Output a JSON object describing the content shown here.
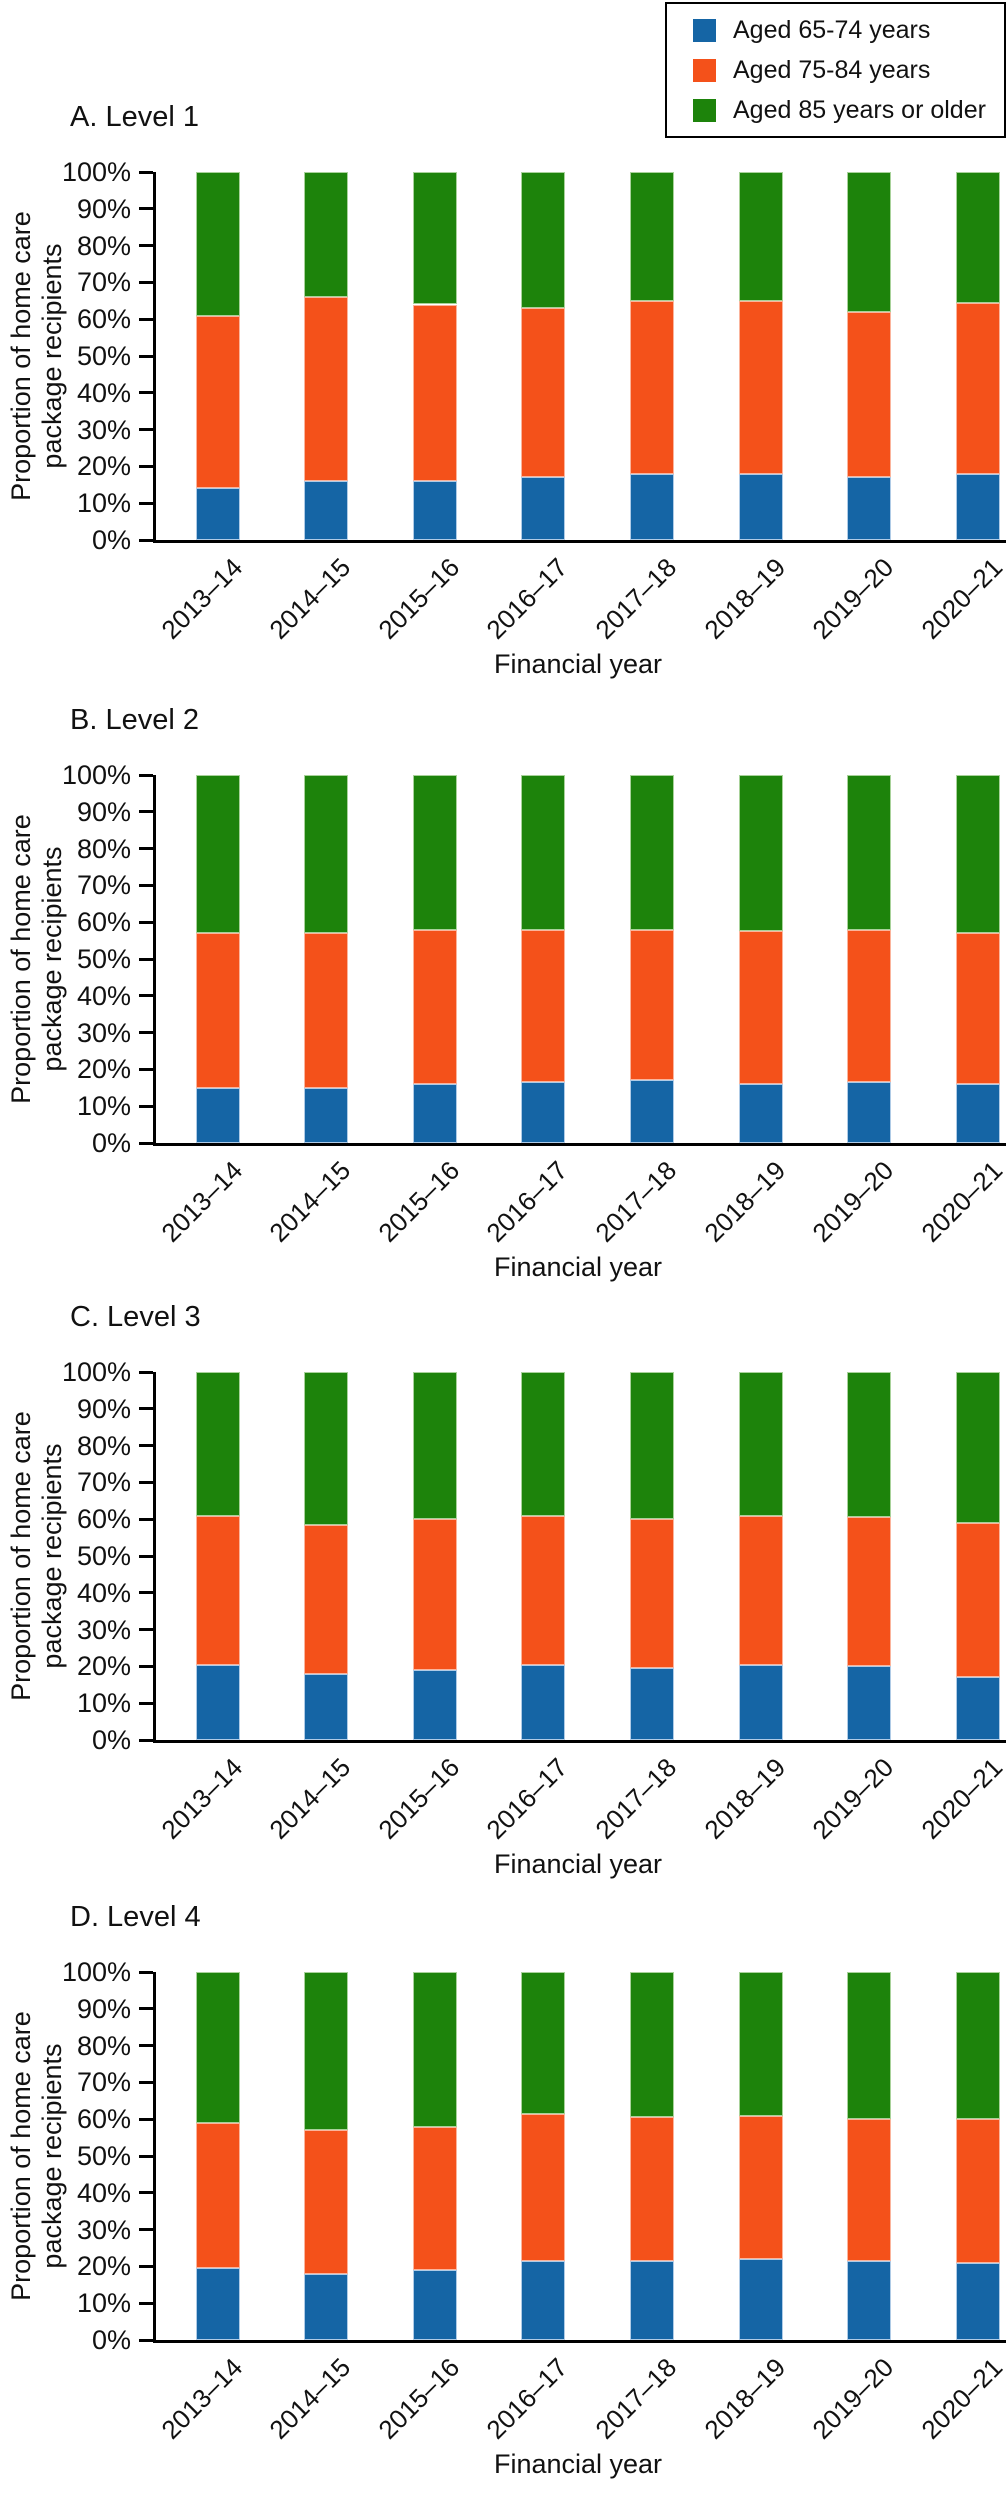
{
  "legend": {
    "items": [
      {
        "label": "Aged 65-74 years",
        "color": "#1565A5",
        "edge": "#AFCBE6"
      },
      {
        "label": "Aged 75-84 years",
        "color": "#F4511A",
        "edge": "#FBB49C"
      },
      {
        "label": "Aged 85 years or older",
        "color": "#1D830B",
        "edge": "#A8D29A"
      }
    ]
  },
  "axes": {
    "x_label": "Financial year",
    "y_label_line1": "Proportion of home care",
    "y_label_line2": "package recipients",
    "y_ticks": [
      "0%",
      "10%",
      "20%",
      "30%",
      "40%",
      "50%",
      "60%",
      "70%",
      "80%",
      "90%",
      "100%"
    ]
  },
  "chart_data": [
    {
      "type": "bar",
      "stacked": true,
      "title": "A. Level 1",
      "categories": [
        "2013–14",
        "2014–15",
        "2015–16",
        "2016–17",
        "2017–18",
        "2018–19",
        "2019–20",
        "2020–21"
      ],
      "series": [
        {
          "name": "Aged 65-74 years",
          "values": [
            14,
            16,
            16,
            17,
            18,
            18,
            17,
            18
          ]
        },
        {
          "name": "Aged 75-84 years",
          "values": [
            47,
            50,
            48,
            46,
            47,
            47,
            45,
            46.5
          ]
        },
        {
          "name": "Aged 85 years or older",
          "values": [
            39,
            34,
            36,
            37,
            35,
            35,
            38,
            35.5
          ]
        }
      ],
      "xlabel": "Financial year",
      "ylabel": "Proportion of home care package recipients",
      "ylim": [
        0,
        100
      ],
      "y_tick_step": 10,
      "y_tick_format": "percent",
      "grid": false,
      "legend_position": "top-right-shared"
    },
    {
      "type": "bar",
      "stacked": true,
      "title": "B. Level 2",
      "categories": [
        "2013–14",
        "2014–15",
        "2015–16",
        "2016–17",
        "2017–18",
        "2018–19",
        "2019–20",
        "2020–21"
      ],
      "series": [
        {
          "name": "Aged 65-74 years",
          "values": [
            15,
            15,
            16,
            16.5,
            17,
            16,
            16.5,
            16
          ]
        },
        {
          "name": "Aged 75-84 years",
          "values": [
            42,
            42,
            42,
            41.5,
            41,
            41.5,
            41.5,
            41
          ]
        },
        {
          "name": "Aged 85 years or older",
          "values": [
            43,
            43,
            42,
            42,
            42,
            42.5,
            42,
            43
          ]
        }
      ],
      "xlabel": "Financial year",
      "ylabel": "Proportion of home care package recipients",
      "ylim": [
        0,
        100
      ],
      "y_tick_step": 10,
      "y_tick_format": "percent",
      "grid": false,
      "legend_position": "top-right-shared"
    },
    {
      "type": "bar",
      "stacked": true,
      "title": "C. Level 3",
      "categories": [
        "2013–14",
        "2014–15",
        "2015–16",
        "2016–17",
        "2017–18",
        "2018–19",
        "2019–20",
        "2020–21"
      ],
      "series": [
        {
          "name": "Aged 65-74 years",
          "values": [
            20.5,
            18,
            19,
            20.5,
            19.5,
            20.5,
            20,
            17
          ]
        },
        {
          "name": "Aged 75-84 years",
          "values": [
            40.5,
            40.5,
            41,
            40.5,
            40.5,
            40.5,
            40.5,
            42
          ]
        },
        {
          "name": "Aged 85 years or older",
          "values": [
            39,
            41.5,
            40,
            39,
            40,
            39,
            39.5,
            41
          ]
        }
      ],
      "xlabel": "Financial year",
      "ylabel": "Proportion of home care package recipients",
      "ylim": [
        0,
        100
      ],
      "y_tick_step": 10,
      "y_tick_format": "percent",
      "grid": false,
      "legend_position": "top-right-shared"
    },
    {
      "type": "bar",
      "stacked": true,
      "title": "D. Level 4",
      "categories": [
        "2013–14",
        "2014–15",
        "2015–16",
        "2016–17",
        "2017–18",
        "2018–19",
        "2019–20",
        "2020–21"
      ],
      "series": [
        {
          "name": "Aged 65-74 years",
          "values": [
            19.5,
            18,
            19,
            21.5,
            21.5,
            22,
            21.5,
            21
          ]
        },
        {
          "name": "Aged 75-84 years",
          "values": [
            39.5,
            39,
            39,
            40,
            39,
            39,
            38.5,
            39
          ]
        },
        {
          "name": "Aged 85 years or older",
          "values": [
            41,
            43,
            42,
            38.5,
            39.5,
            39,
            40,
            40
          ]
        }
      ],
      "xlabel": "Financial year",
      "ylabel": "Proportion of home care package recipients",
      "ylim": [
        0,
        100
      ],
      "y_tick_step": 10,
      "y_tick_format": "percent",
      "grid": false,
      "legend_position": "top-right-shared"
    }
  ]
}
